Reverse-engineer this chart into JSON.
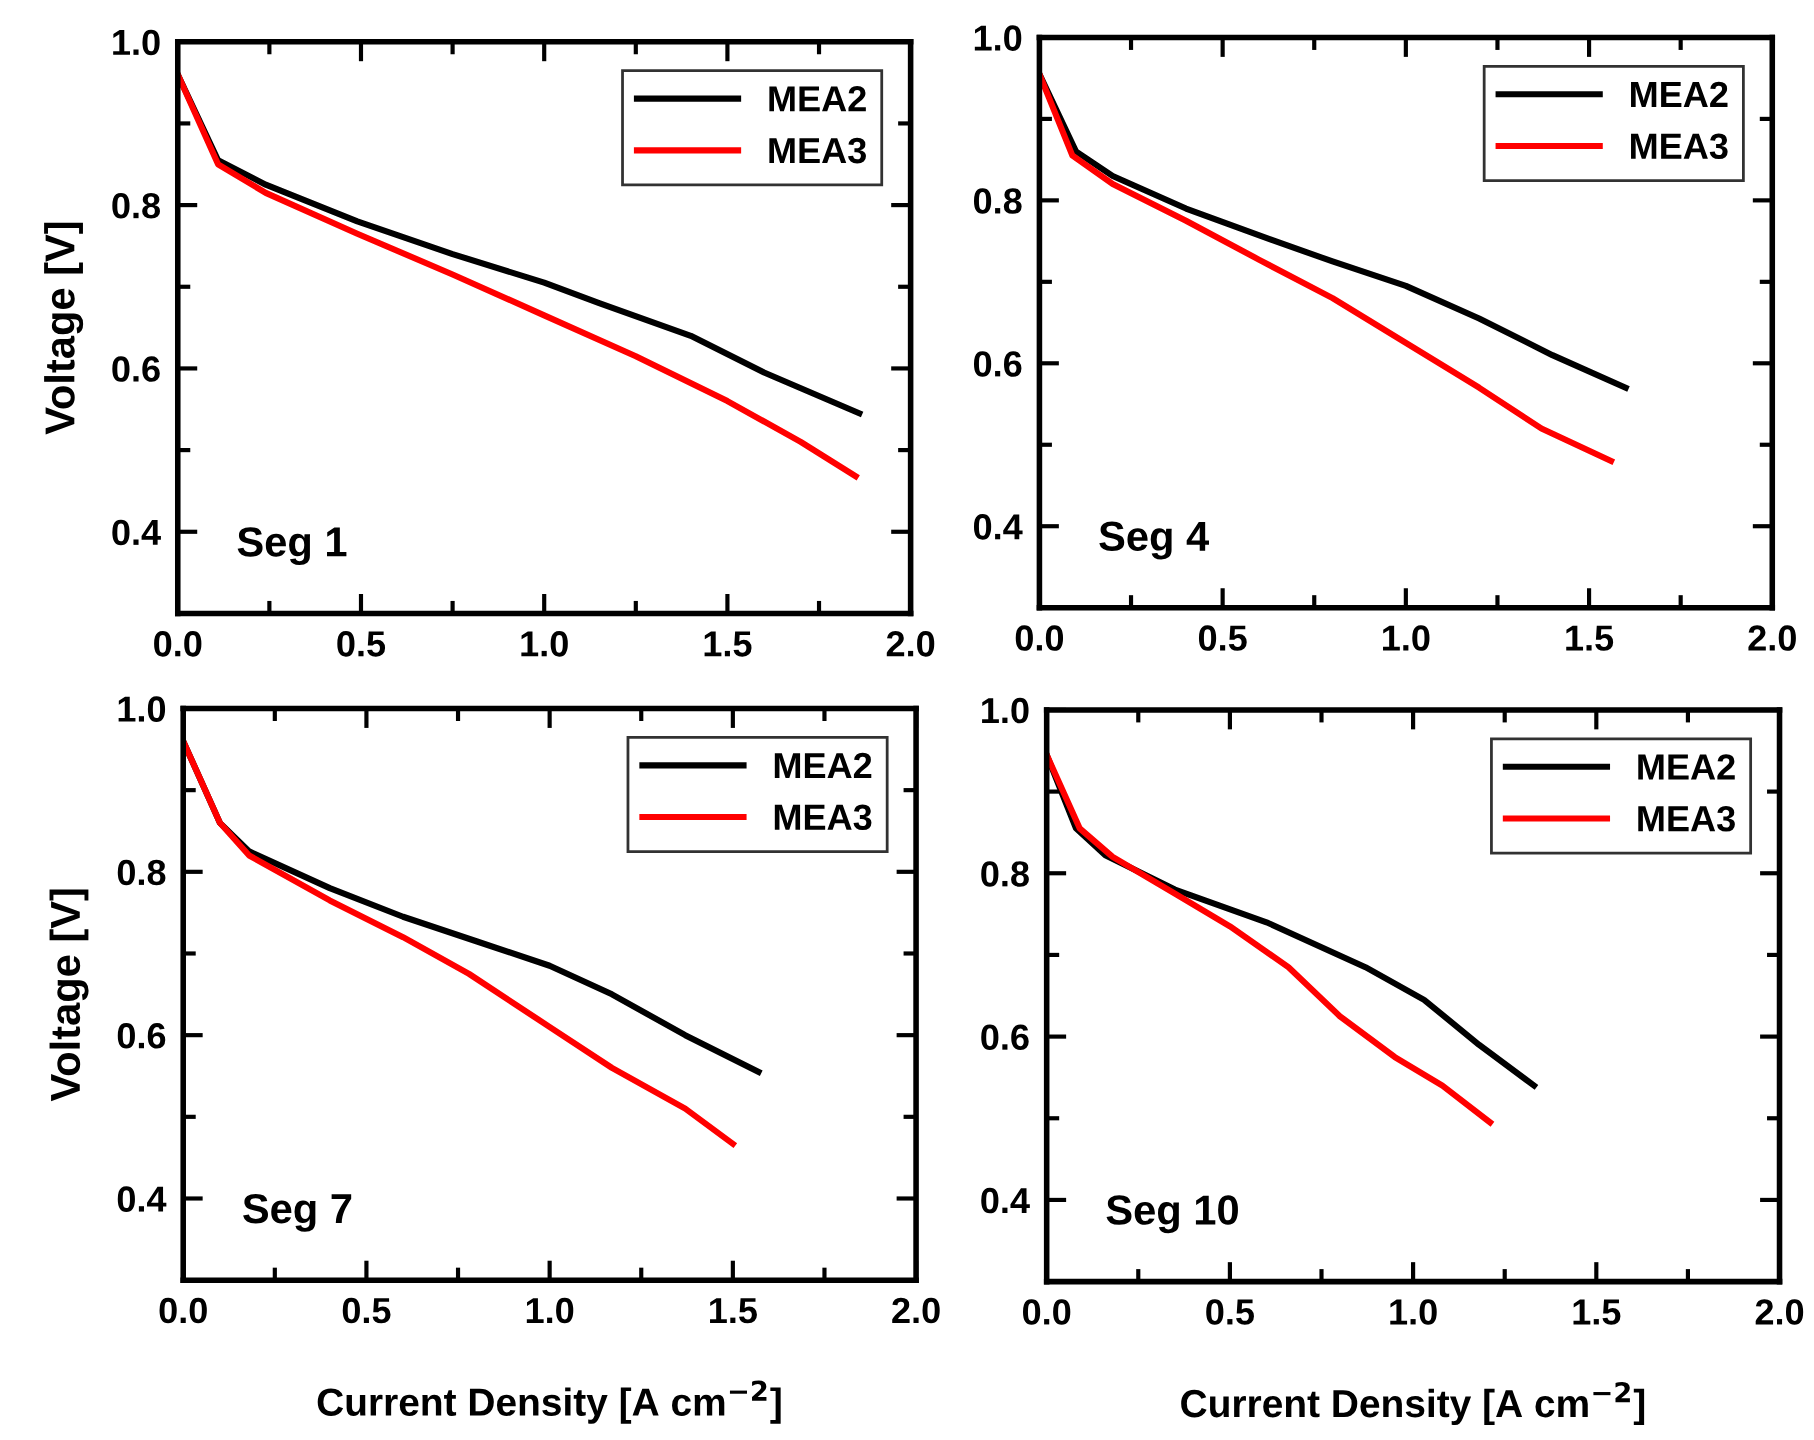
{
  "chart_data": [
    {
      "type": "line",
      "ylabel": "Voltage [V]",
      "annotations": [
        "Seg 1"
      ],
      "xlim": [
        0,
        2
      ],
      "ylim": [
        0.3,
        1.0
      ],
      "xticks": [
        {
          "value": 0,
          "label": "0.0"
        },
        {
          "value": 0.25,
          "label": null
        },
        {
          "value": 0.5,
          "label": "0.5"
        },
        {
          "value": 0.75,
          "label": null
        },
        {
          "value": 1,
          "label": "1.0"
        },
        {
          "value": 1.25,
          "label": null
        },
        {
          "value": 1.5,
          "label": "1.5"
        },
        {
          "value": 1.75,
          "label": null
        },
        {
          "value": 2,
          "label": "2.0"
        }
      ],
      "yticks": [
        {
          "value": 0.3,
          "label": null
        },
        0.4,
        {
          "value": 0.5,
          "label": null
        },
        0.6,
        {
          "value": 0.7,
          "label": null
        },
        0.8,
        {
          "value": 0.9,
          "label": null
        },
        {
          "value": 1,
          "label": "1.0"
        }
      ],
      "legend": "top right",
      "grid": false,
      "marker": "none",
      "line_style": "solid",
      "series": [
        {
          "name": "MEA2",
          "color": "#000000",
          "x": [
            0.0,
            0.11,
            0.24,
            0.49,
            0.75,
            1.0,
            1.15,
            1.4,
            1.6,
            1.86
          ],
          "values": [
            0.96,
            0.855,
            0.825,
            0.78,
            0.74,
            0.705,
            0.68,
            0.64,
            0.595,
            0.545
          ]
        },
        {
          "name": "MEA3",
          "color": "#ff0000",
          "x": [
            0.0,
            0.11,
            0.24,
            0.49,
            0.75,
            1.0,
            1.25,
            1.5,
            1.7,
            1.85
          ],
          "values": [
            0.96,
            0.85,
            0.815,
            0.765,
            0.715,
            0.665,
            0.615,
            0.56,
            0.51,
            0.468
          ]
        }
      ]
    },
    {
      "type": "line",
      "annotations": [
        "Seg 4"
      ],
      "xlim": [
        0,
        2
      ],
      "ylim": [
        0.3,
        1.0
      ],
      "xticks": [
        {
          "value": 0,
          "label": "0.0"
        },
        {
          "value": 0.25,
          "label": null
        },
        {
          "value": 0.5,
          "label": "0.5"
        },
        {
          "value": 0.75,
          "label": null
        },
        {
          "value": 1,
          "label": "1.0"
        },
        {
          "value": 1.25,
          "label": null
        },
        {
          "value": 1.5,
          "label": "1.5"
        },
        {
          "value": 1.75,
          "label": null
        },
        {
          "value": 2,
          "label": "2.0"
        }
      ],
      "yticks": [
        {
          "value": 0.3,
          "label": null
        },
        0.4,
        {
          "value": 0.5,
          "label": null
        },
        0.6,
        {
          "value": 0.7,
          "label": null
        },
        0.8,
        {
          "value": 0.9,
          "label": null
        },
        {
          "value": 1,
          "label": "1.0"
        }
      ],
      "legend": "top right",
      "grid": false,
      "marker": "none",
      "line_style": "solid",
      "series": [
        {
          "name": "MEA2",
          "color": "#000000",
          "x": [
            0.0,
            0.1,
            0.2,
            0.4,
            0.6,
            0.8,
            1.0,
            1.2,
            1.4,
            1.6
          ],
          "values": [
            0.955,
            0.86,
            0.83,
            0.79,
            0.757,
            0.725,
            0.695,
            0.655,
            0.61,
            0.57
          ]
        },
        {
          "name": "MEA3",
          "color": "#ff0000",
          "x": [
            0.0,
            0.09,
            0.2,
            0.4,
            0.6,
            0.8,
            1.0,
            1.2,
            1.37,
            1.56
          ],
          "values": [
            0.955,
            0.855,
            0.82,
            0.775,
            0.727,
            0.68,
            0.625,
            0.57,
            0.52,
            0.48
          ]
        }
      ]
    },
    {
      "type": "line",
      "xlabel": "Current Density [A cm$^{−2}$]",
      "ylabel": "Voltage [V]",
      "annotations": [
        "Seg 7"
      ],
      "xlim": [
        0,
        2
      ],
      "ylim": [
        0.3,
        1.0
      ],
      "xticks": [
        {
          "value": 0,
          "label": "0.0"
        },
        {
          "value": 0.25,
          "label": null
        },
        {
          "value": 0.5,
          "label": "0.5"
        },
        {
          "value": 0.75,
          "label": null
        },
        {
          "value": 1,
          "label": "1.0"
        },
        {
          "value": 1.25,
          "label": null
        },
        {
          "value": 1.5,
          "label": "1.5"
        },
        {
          "value": 1.75,
          "label": null
        },
        {
          "value": 2,
          "label": "2.0"
        }
      ],
      "yticks": [
        {
          "value": 0.3,
          "label": null
        },
        0.4,
        {
          "value": 0.5,
          "label": null
        },
        0.6,
        {
          "value": 0.7,
          "label": null
        },
        0.8,
        {
          "value": 0.9,
          "label": null
        },
        {
          "value": 1,
          "label": "1.0"
        }
      ],
      "legend": "top right",
      "grid": false,
      "marker": "none",
      "line_style": "solid",
      "series": [
        {
          "name": "MEA2",
          "color": "#000000",
          "x": [
            0.0,
            0.1,
            0.18,
            0.4,
            0.6,
            0.8,
            1.0,
            1.17,
            1.37,
            1.57
          ],
          "values": [
            0.96,
            0.86,
            0.825,
            0.78,
            0.745,
            0.715,
            0.685,
            0.65,
            0.6,
            0.555
          ]
        },
        {
          "name": "MEA3",
          "color": "#ff0000",
          "x": [
            0.0,
            0.1,
            0.18,
            0.4,
            0.6,
            0.78,
            1.0,
            1.17,
            1.37,
            1.5
          ],
          "values": [
            0.96,
            0.86,
            0.82,
            0.765,
            0.72,
            0.675,
            0.61,
            0.56,
            0.51,
            0.467
          ]
        }
      ]
    },
    {
      "type": "line",
      "xlabel": "Current Density [A cm$^{−2}$]",
      "annotations": [
        "Seg 10"
      ],
      "xlim": [
        0,
        2
      ],
      "ylim": [
        0.3,
        1.0
      ],
      "xticks": [
        {
          "value": 0,
          "label": "0.0"
        },
        {
          "value": 0.25,
          "label": null
        },
        {
          "value": 0.5,
          "label": "0.5"
        },
        {
          "value": 0.75,
          "label": null
        },
        {
          "value": 1,
          "label": "1.0"
        },
        {
          "value": 1.25,
          "label": null
        },
        {
          "value": 1.5,
          "label": "1.5"
        },
        {
          "value": 1.75,
          "label": null
        },
        {
          "value": 2,
          "label": "2.0"
        }
      ],
      "yticks": [
        {
          "value": 0.3,
          "label": null
        },
        0.4,
        {
          "value": 0.5,
          "label": null
        },
        0.6,
        {
          "value": 0.7,
          "label": null
        },
        0.8,
        {
          "value": 0.9,
          "label": null
        },
        {
          "value": 1,
          "label": "1.0"
        }
      ],
      "legend": "top right",
      "grid": false,
      "marker": "none",
      "line_style": "solid",
      "series": [
        {
          "name": "MEA2",
          "color": "#000000",
          "x": [
            0.0,
            0.08,
            0.16,
            0.35,
            0.6,
            0.87,
            1.03,
            1.18,
            1.33
          ],
          "values": [
            0.945,
            0.855,
            0.822,
            0.78,
            0.74,
            0.685,
            0.645,
            0.59,
            0.54
          ]
        },
        {
          "name": "MEA3",
          "color": "#ff0000",
          "x": [
            0.0,
            0.09,
            0.18,
            0.35,
            0.5,
            0.66,
            0.8,
            0.95,
            1.08,
            1.21
          ],
          "values": [
            0.945,
            0.855,
            0.82,
            0.775,
            0.735,
            0.685,
            0.625,
            0.575,
            0.54,
            0.495
          ]
        }
      ]
    }
  ]
}
